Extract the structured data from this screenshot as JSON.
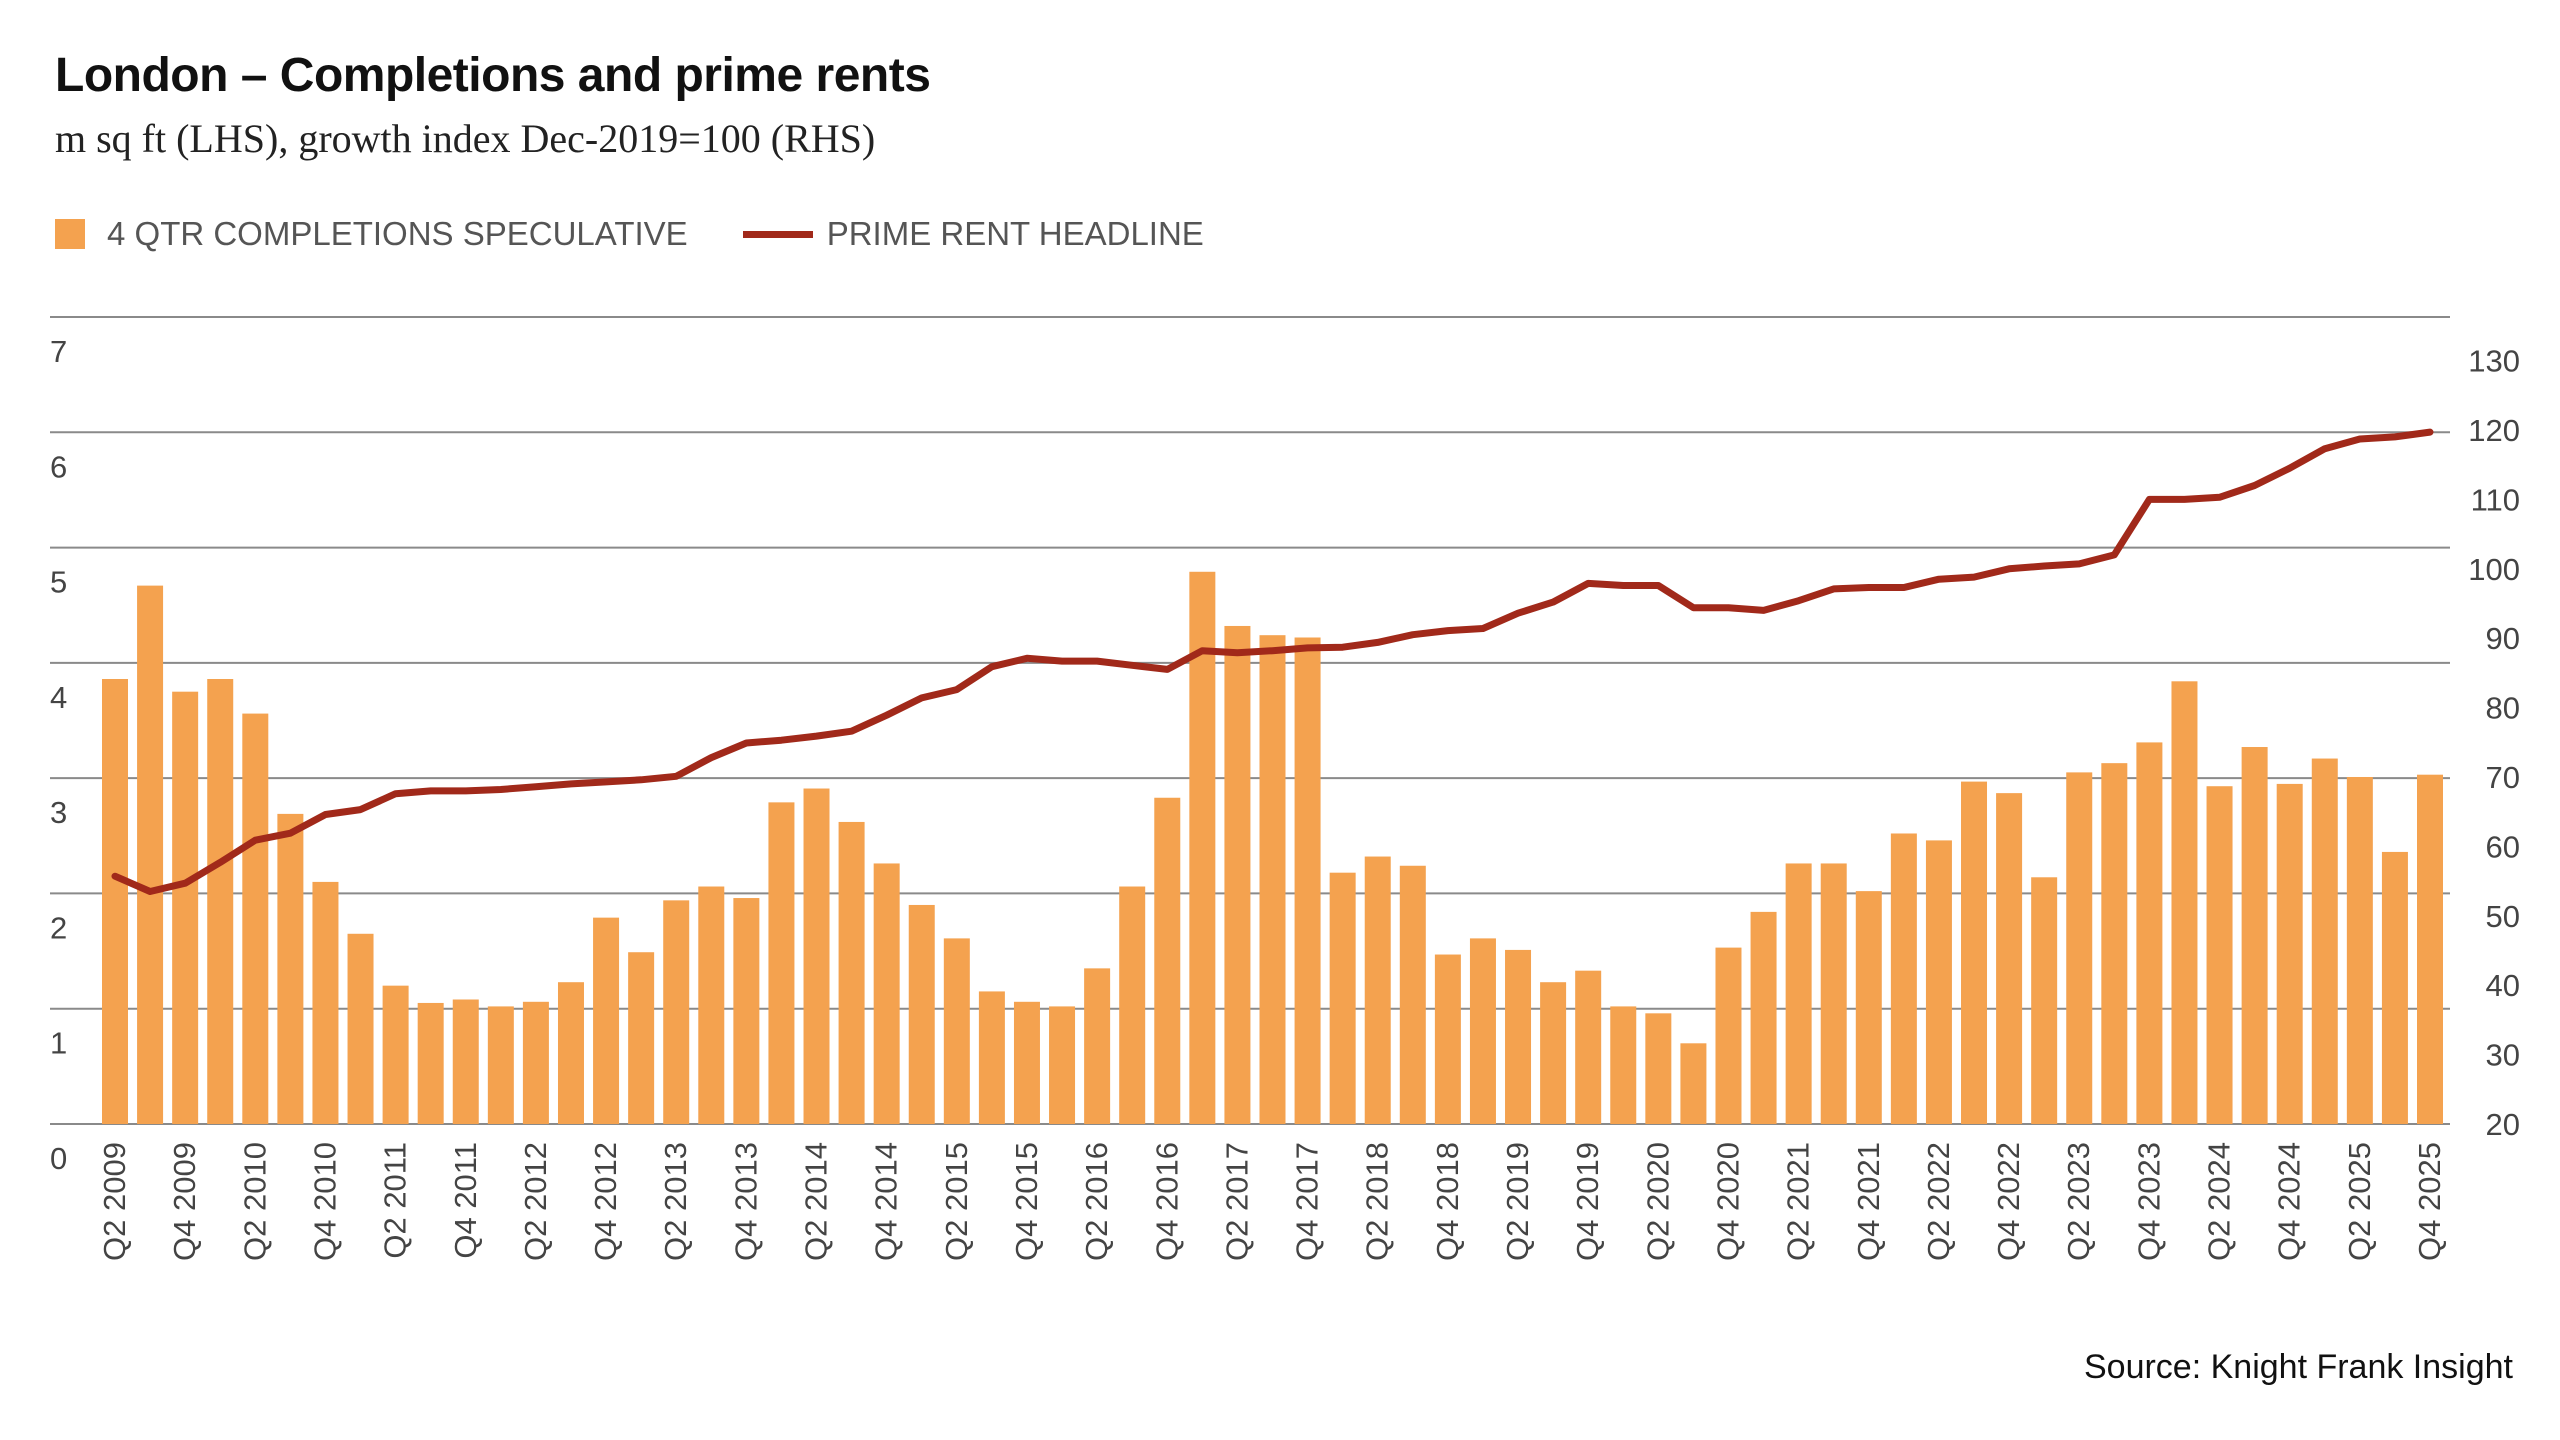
{
  "chart_data": {
    "type": "bar+line",
    "title": "London – Completions and prime rents",
    "subtitle": "m sq ft (LHS), growth index Dec-2019=100 (RHS)",
    "source": "Source: Knight Frank Insight",
    "legend_position": "top-left",
    "grid": true,
    "colors": {
      "bars": "#F4A24F",
      "line": "#A1291A",
      "grid": "#8a8a8a"
    },
    "categories": [
      "Q2 2009",
      "Q3 2009",
      "Q4 2009",
      "Q1 2010",
      "Q2 2010",
      "Q3 2010",
      "Q4 2010",
      "Q1 2011",
      "Q2 2011",
      "Q3 2011",
      "Q4 2011",
      "Q1 2012",
      "Q2 2012",
      "Q3 2012",
      "Q4 2012",
      "Q1 2013",
      "Q2 2013",
      "Q3 2013",
      "Q4 2013",
      "Q1 2014",
      "Q2 2014",
      "Q3 2014",
      "Q4 2014",
      "Q1 2015",
      "Q2 2015",
      "Q3 2015",
      "Q4 2015",
      "Q1 2016",
      "Q2 2016",
      "Q3 2016",
      "Q4 2016",
      "Q1 2017",
      "Q2 2017",
      "Q3 2017",
      "Q4 2017",
      "Q1 2018",
      "Q2 2018",
      "Q3 2018",
      "Q4 2018",
      "Q1 2019",
      "Q2 2019",
      "Q3 2019",
      "Q4 2019",
      "Q1 2020",
      "Q2 2020",
      "Q3 2020",
      "Q4 2020",
      "Q1 2021",
      "Q2 2021",
      "Q3 2021",
      "Q4 2021",
      "Q1 2022",
      "Q2 2022",
      "Q3 2022",
      "Q4 2022",
      "Q1 2023",
      "Q2 2023",
      "Q3 2023",
      "Q4 2023",
      "Q1 2024",
      "Q2 2024",
      "Q3 2024",
      "Q4 2024",
      "Q1 2025",
      "Q2 2025",
      "Q3 2025",
      "Q4 2025"
    ],
    "x_tick_labels": [
      "Q2 2009",
      "Q4 2009",
      "Q2 2010",
      "Q4 2010",
      "Q2 2011",
      "Q4 2011",
      "Q2 2012",
      "Q4 2012",
      "Q2 2013",
      "Q4 2013",
      "Q2 2014",
      "Q4 2014",
      "Q2 2015",
      "Q4 2015",
      "Q2 2016",
      "Q4 2016",
      "Q2 2017",
      "Q4 2017",
      "Q2 2018",
      "Q4 2018",
      "Q2 2019",
      "Q4 2019",
      "Q2 2020",
      "Q4 2020",
      "Q2 2021",
      "Q4 2021",
      "Q2 2022",
      "Q4 2022",
      "Q2 2023",
      "Q4 2023",
      "Q2 2024",
      "Q4 2024",
      "Q2 2025",
      "Q4 2025"
    ],
    "y_left": {
      "label": "m sq ft",
      "range": [
        0,
        7
      ],
      "ticks": [
        0,
        1,
        2,
        3,
        4,
        5,
        6,
        7
      ]
    },
    "y_right": {
      "label": "growth index Dec-2019=100",
      "range": [
        20,
        136
      ],
      "ticks": [
        20,
        30,
        40,
        50,
        60,
        70,
        80,
        90,
        100,
        110,
        120,
        130
      ]
    },
    "series": [
      {
        "name": "4 QTR COMPLETIONS SPECULATIVE",
        "type": "bar",
        "axis": "left",
        "values": [
          3.86,
          4.67,
          3.75,
          3.86,
          3.56,
          2.69,
          2.1,
          1.65,
          1.2,
          1.05,
          1.08,
          1.02,
          1.06,
          1.23,
          1.79,
          1.49,
          1.94,
          2.06,
          1.96,
          2.79,
          2.91,
          2.62,
          2.26,
          1.9,
          1.61,
          1.15,
          1.06,
          1.02,
          1.35,
          2.06,
          2.83,
          4.79,
          4.32,
          4.24,
          4.22,
          2.18,
          2.32,
          2.24,
          1.47,
          1.61,
          1.51,
          1.23,
          1.33,
          1.02,
          0.96,
          0.7,
          1.53,
          1.84,
          2.26,
          2.26,
          2.02,
          2.52,
          2.46,
          2.97,
          2.87,
          2.14,
          3.05,
          3.13,
          3.31,
          3.84,
          2.93,
          3.27,
          2.95,
          3.17,
          3.01,
          2.36,
          3.03
        ]
      },
      {
        "name": "PRIME RENT HEADLINE",
        "type": "line",
        "axis": "right",
        "values": [
          55.7,
          53.5,
          54.7,
          57.7,
          60.9,
          61.9,
          64.6,
          65.3,
          67.6,
          68.0,
          68.0,
          68.2,
          68.6,
          69.0,
          69.3,
          69.6,
          70.1,
          72.8,
          74.9,
          75.3,
          75.9,
          76.6,
          78.9,
          81.4,
          82.6,
          85.9,
          87.1,
          86.7,
          86.7,
          86.1,
          85.5,
          88.2,
          87.9,
          88.2,
          88.6,
          88.7,
          89.4,
          90.5,
          91.1,
          91.4,
          93.6,
          95.2,
          97.9,
          97.6,
          97.6,
          94.4,
          94.4,
          94.0,
          95.4,
          97.1,
          97.3,
          97.3,
          98.5,
          98.8,
          100.0,
          100.4,
          100.7,
          102.0,
          110.0,
          110.0,
          110.3,
          112.0,
          114.5,
          117.3,
          118.7,
          119.0,
          119.7
        ]
      }
    ]
  }
}
